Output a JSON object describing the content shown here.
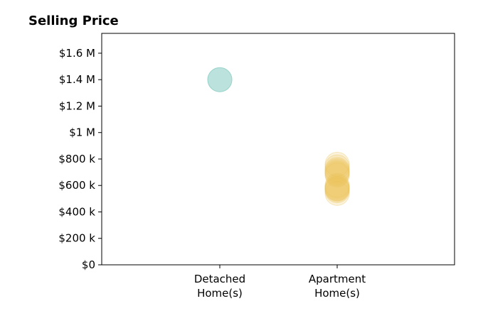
{
  "chart_data": {
    "type": "scatter",
    "title": "Selling Price",
    "xlabel": "",
    "ylabel": "",
    "categories": [
      [
        "Detached",
        "Home(s)"
      ],
      [
        "Apartment",
        "Home(s)"
      ]
    ],
    "ylim": [
      0,
      1750000
    ],
    "y_ticks": [
      0,
      200000,
      400000,
      600000,
      800000,
      1000000,
      1200000,
      1400000,
      1600000
    ],
    "y_tick_labels": [
      "$0",
      "$200 k",
      "$400 k",
      "$600 k",
      "$800 k",
      "$1 M",
      "$1.2 M",
      "$1.4 M",
      "$1.6 M"
    ],
    "grid": false,
    "series": [
      {
        "category_index": 0,
        "color": "#8fcfc6",
        "values": [
          1400000
        ]
      },
      {
        "category_index": 1,
        "color": "#ecc25a",
        "values": [
          760000,
          740000,
          720000,
          710000,
          700000,
          690000,
          680000,
          600000,
          590000,
          580000,
          575000,
          570000,
          560000,
          540000
        ]
      }
    ]
  }
}
